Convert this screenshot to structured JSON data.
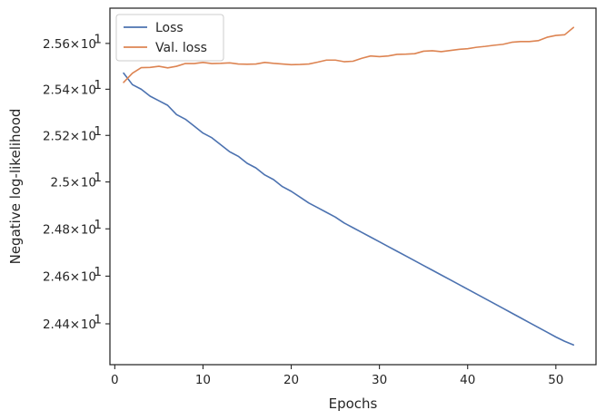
{
  "chart_data": {
    "type": "line",
    "title": "",
    "xlabel": "Epochs",
    "ylabel": "Negative log-likelihood",
    "xlim": [
      -0.55,
      54.55
    ],
    "ylim": [
      24.23,
      25.755
    ],
    "y_scale": "log",
    "grid": false,
    "legend_position": "top-left",
    "x_ticks": [
      {
        "value": 0,
        "label": "0"
      },
      {
        "value": 10,
        "label": "10"
      },
      {
        "value": 20,
        "label": "20"
      },
      {
        "value": 30,
        "label": "30"
      },
      {
        "value": 40,
        "label": "40"
      },
      {
        "value": 50,
        "label": "50"
      }
    ],
    "y_ticks": [
      {
        "value": 24.4,
        "mantissa": "2.44",
        "base": "10",
        "exp": "1"
      },
      {
        "value": 24.6,
        "mantissa": "2.46",
        "base": "10",
        "exp": "1"
      },
      {
        "value": 24.8,
        "mantissa": "2.48",
        "base": "10",
        "exp": "1"
      },
      {
        "value": 25.0,
        "mantissa": "2.5",
        "base": "10",
        "exp": "1"
      },
      {
        "value": 25.2,
        "mantissa": "2.52",
        "base": "10",
        "exp": "1"
      },
      {
        "value": 25.4,
        "mantissa": "2.54",
        "base": "10",
        "exp": "1"
      },
      {
        "value": 25.6,
        "mantissa": "2.56",
        "base": "10",
        "exp": "1"
      }
    ],
    "times_sign": "×",
    "series": [
      {
        "name": "Loss",
        "color": "#4c72b0",
        "x": [
          1,
          2,
          3,
          4,
          5,
          6,
          7,
          8,
          9,
          10,
          11,
          12,
          13,
          14,
          15,
          16,
          17,
          18,
          19,
          20,
          21,
          22,
          23,
          24,
          25,
          26,
          27,
          28,
          29,
          30,
          31,
          32,
          33,
          34,
          35,
          36,
          37,
          38,
          39,
          40,
          41,
          42,
          43,
          44,
          45,
          46,
          47,
          48,
          49,
          50,
          51,
          52
        ],
        "values": [
          25.47,
          25.42,
          25.4,
          25.37,
          25.35,
          25.33,
          25.29,
          25.27,
          25.24,
          25.21,
          25.19,
          25.16,
          25.13,
          25.11,
          25.08,
          25.06,
          25.03,
          25.01,
          24.98,
          24.96,
          24.935,
          24.91,
          24.89,
          24.87,
          24.85,
          24.825,
          24.805,
          24.785,
          24.765,
          24.745,
          24.725,
          24.705,
          24.685,
          24.665,
          24.645,
          24.625,
          24.605,
          24.585,
          24.565,
          24.545,
          24.525,
          24.505,
          24.485,
          24.465,
          24.445,
          24.425,
          24.405,
          24.385,
          24.365,
          24.345,
          24.327,
          24.312
        ]
      },
      {
        "name": "Val. loss",
        "color": "#dd8452",
        "x": [
          1,
          2,
          3,
          4,
          5,
          6,
          7,
          8,
          9,
          10,
          11,
          12,
          13,
          14,
          15,
          16,
          17,
          18,
          19,
          20,
          21,
          22,
          23,
          24,
          25,
          26,
          27,
          28,
          29,
          30,
          31,
          32,
          33,
          34,
          35,
          36,
          37,
          38,
          39,
          40,
          41,
          42,
          43,
          44,
          45,
          46,
          47,
          48,
          49,
          50,
          51,
          52
        ],
        "values": [
          25.43,
          25.47,
          25.494,
          25.495,
          25.5,
          25.493,
          25.5,
          25.512,
          25.512,
          25.517,
          25.512,
          25.513,
          25.515,
          25.51,
          25.509,
          25.51,
          25.517,
          25.513,
          25.51,
          25.507,
          25.508,
          25.51,
          25.518,
          25.527,
          25.527,
          25.52,
          25.522,
          25.535,
          25.545,
          25.542,
          25.545,
          25.552,
          25.553,
          25.555,
          25.566,
          25.568,
          25.564,
          25.569,
          25.574,
          25.577,
          25.583,
          25.587,
          25.592,
          25.596,
          25.605,
          25.608,
          25.608,
          25.612,
          25.627,
          25.635,
          25.638,
          25.67
        ]
      }
    ]
  }
}
